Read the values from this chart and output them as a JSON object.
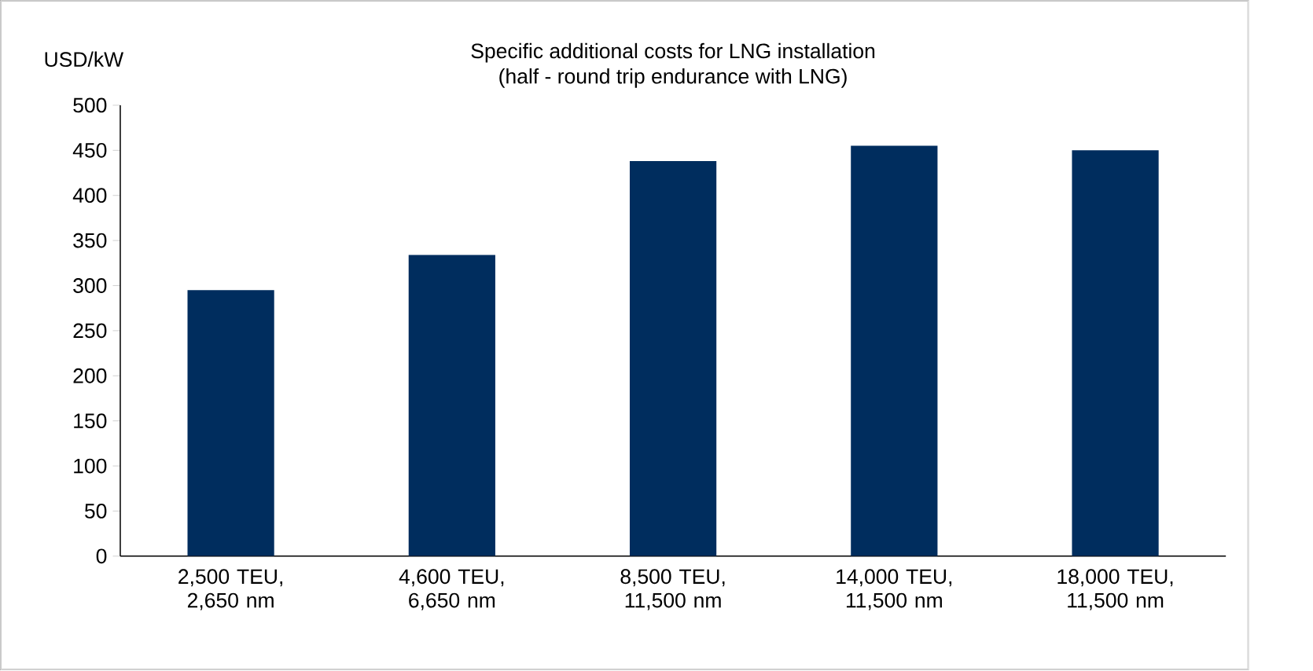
{
  "chart_data": {
    "type": "bar",
    "title": "Specific additional costs for LNG installation",
    "subtitle": "(half - round trip endurance with LNG)",
    "ylabel": "USD/kW",
    "categories": [
      "2,500 TEU, 2,650 nm",
      "4,600 TEU, 6,650 nm",
      "8,500 TEU, 11,500 nm",
      "14,000 TEU, 11,500 nm",
      "18,000 TEU, 11,500 nm"
    ],
    "values": [
      295,
      334,
      438,
      455,
      450
    ],
    "color": "#002d5e",
    "ylim": [
      0,
      500
    ],
    "yticks": [
      0,
      50,
      100,
      150,
      200,
      250,
      300,
      350,
      400,
      450,
      500
    ],
    "grid": false
  }
}
